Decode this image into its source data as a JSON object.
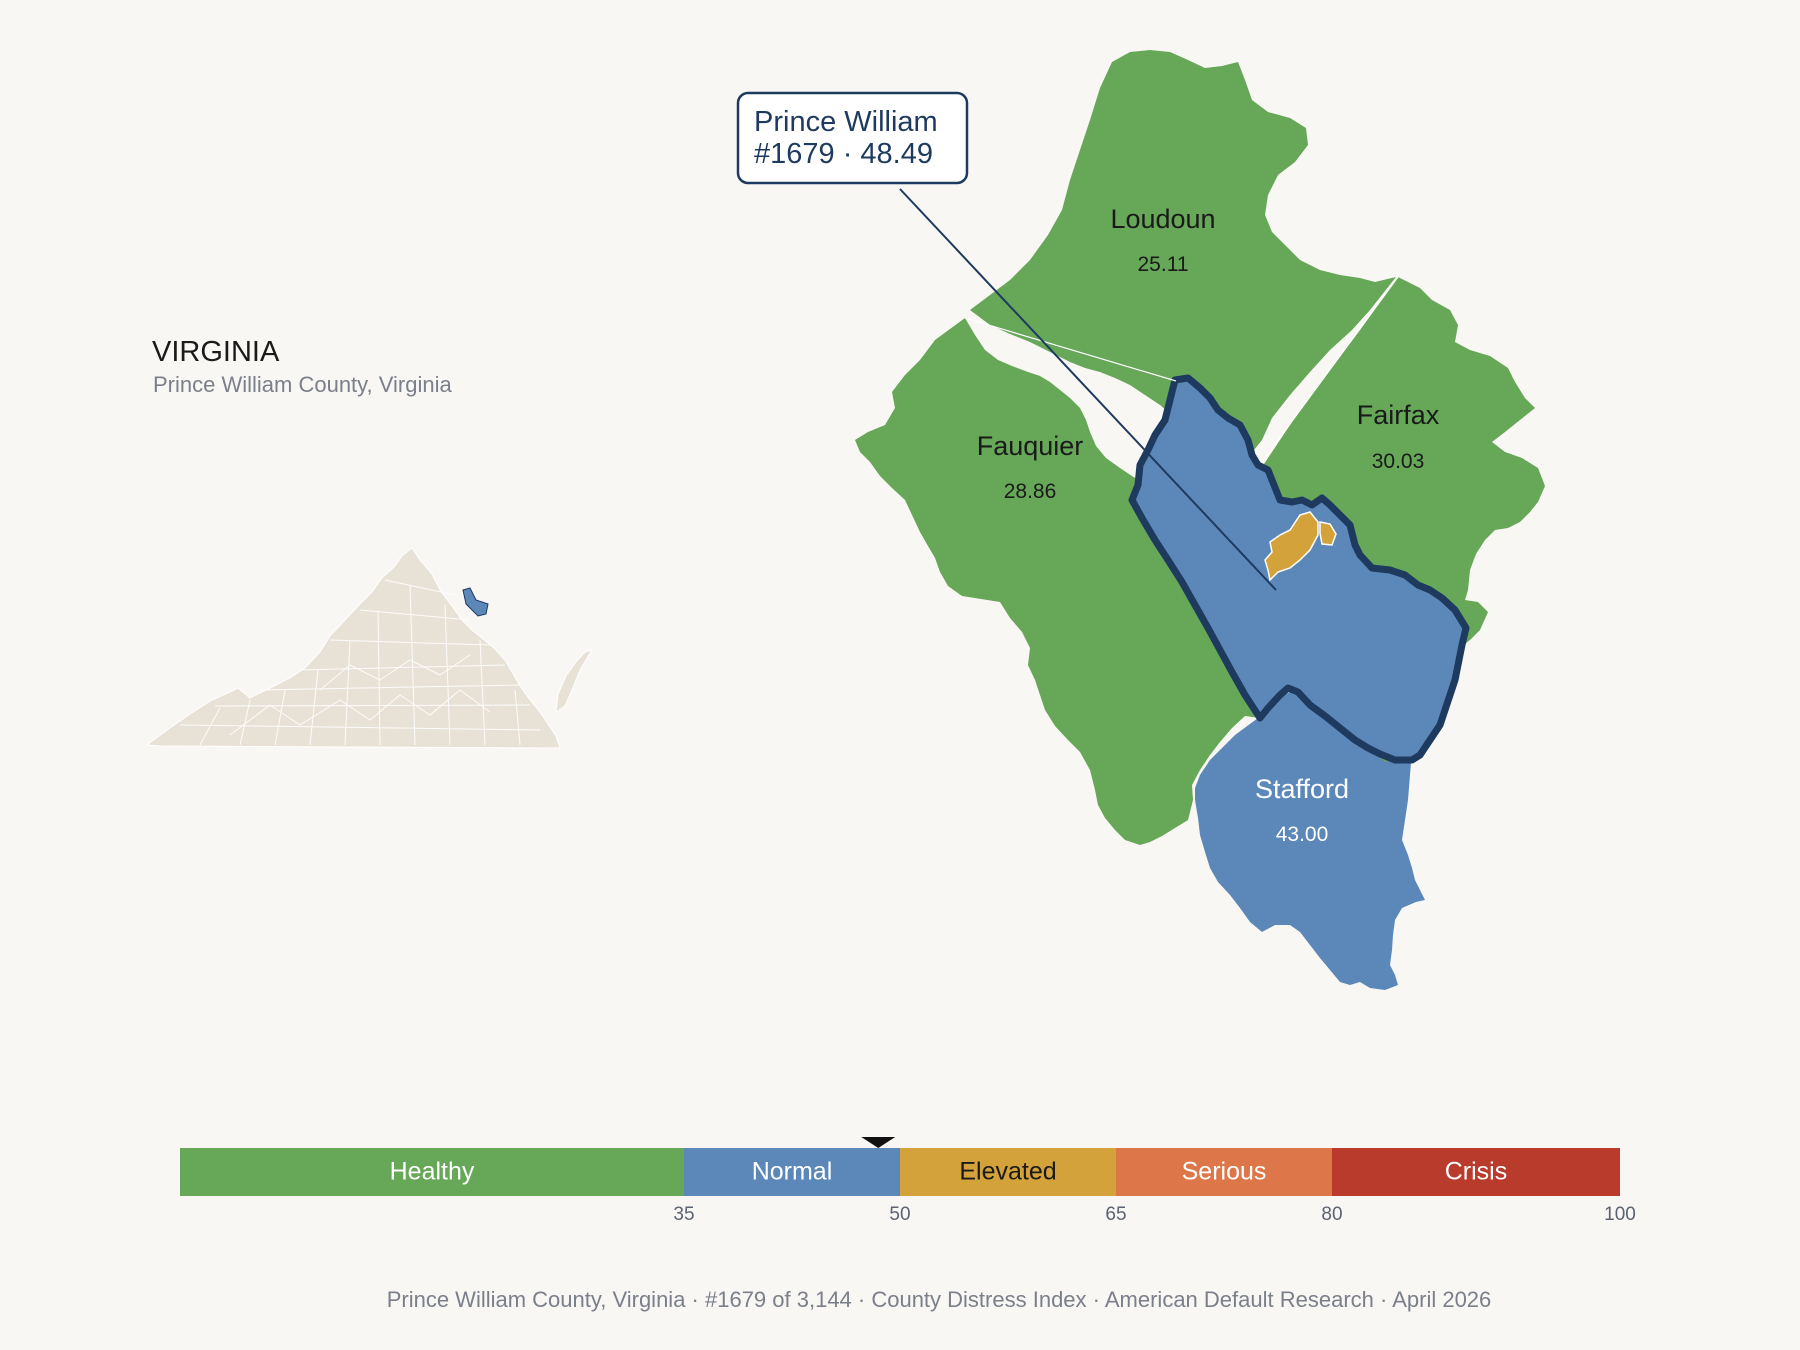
{
  "state": {
    "title": "VIRGINIA",
    "subtitle": "Prince William County, Virginia"
  },
  "callout": {
    "line1": "Prince William",
    "line2": "#1679 · 48.49"
  },
  "counties": [
    {
      "id": "loudoun",
      "name": "Loudoun",
      "value": "25.11",
      "color": "#66a758",
      "text_color": "#1a1a1a"
    },
    {
      "id": "fairfax",
      "name": "Fairfax",
      "value": "30.03",
      "color": "#66a758",
      "text_color": "#1a1a1a"
    },
    {
      "id": "fauquier",
      "name": "Fauquier",
      "value": "28.86",
      "color": "#66a758",
      "text_color": "#1a1a1a"
    },
    {
      "id": "stafford",
      "name": "Stafford",
      "value": "43.00",
      "color": "#5b88b8",
      "text_color": "#ffffff"
    }
  ],
  "focus_county": {
    "name": "Prince William",
    "rank": 1679,
    "score": 48.49,
    "color": "#5b88b8",
    "outline": "#1e3a5f"
  },
  "enclave_color": "#d4a23a",
  "locator_fill": "#e8e1d6",
  "scale": {
    "min": 0,
    "max": 100,
    "marker_value": 48.49,
    "segments": [
      {
        "label": "Healthy",
        "from": 0,
        "to": 35,
        "color": "#66a758",
        "text_color": "#ffffff"
      },
      {
        "label": "Normal",
        "from": 35,
        "to": 50,
        "color": "#5b88b8",
        "text_color": "#ffffff"
      },
      {
        "label": "Elevated",
        "from": 50,
        "to": 65,
        "color": "#d4a23a",
        "text_color": "#1a1a1a"
      },
      {
        "label": "Serious",
        "from": 65,
        "to": 80,
        "color": "#dd7749",
        "text_color": "#ffffff"
      },
      {
        "label": "Crisis",
        "from": 80,
        "to": 100,
        "color": "#b83b2c",
        "text_color": "#ffffff"
      }
    ],
    "ticks": [
      "35",
      "50",
      "65",
      "80",
      "100"
    ]
  },
  "footer": "Prince William County, Virginia  ·  #1679 of 3,144  ·  County Distress Index  ·  American Default Research  ·  April 2026"
}
